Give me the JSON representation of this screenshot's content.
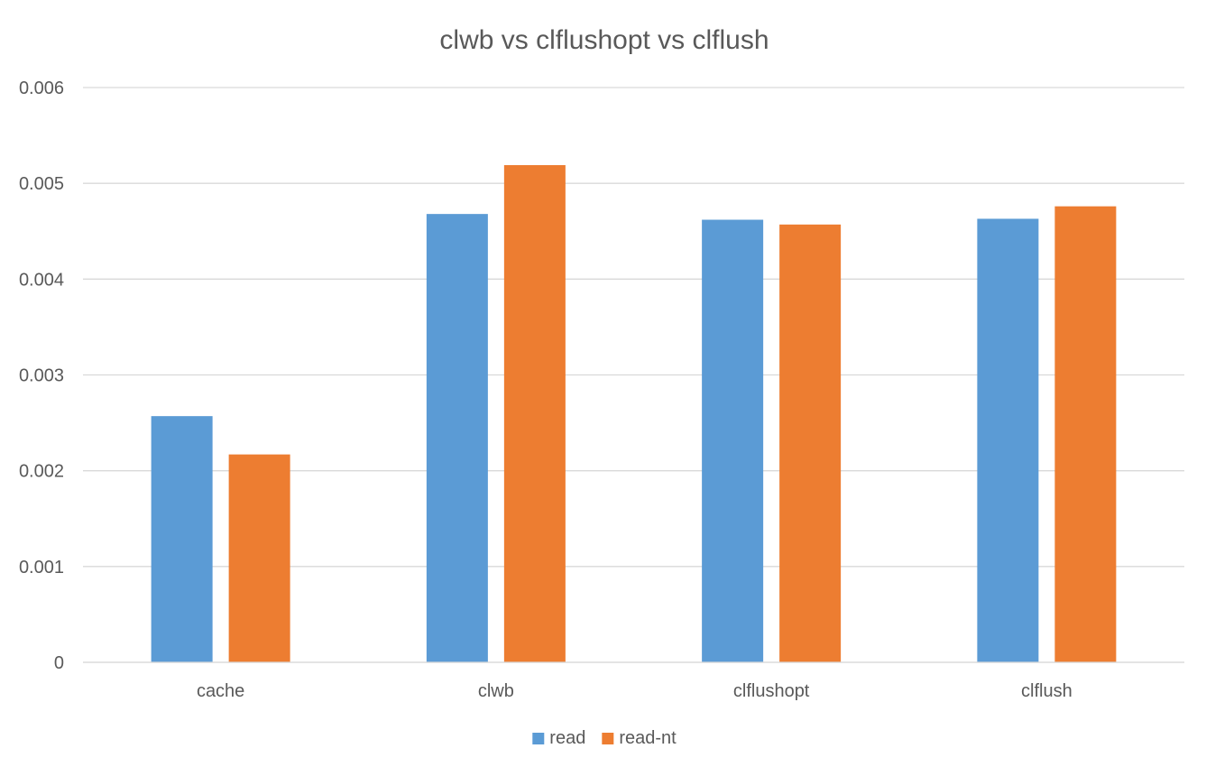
{
  "chart_data": {
    "type": "bar",
    "title": "clwb vs clflushopt vs clflush",
    "xlabel": "",
    "ylabel": "",
    "categories": [
      "cache",
      "clwb",
      "clflushopt",
      "clflush"
    ],
    "series": [
      {
        "name": "read",
        "color": "#5B9BD5",
        "values": [
          0.00257,
          0.00468,
          0.00462,
          0.00463
        ]
      },
      {
        "name": "read-nt",
        "color": "#ED7D31",
        "values": [
          0.00217,
          0.00519,
          0.00457,
          0.00476
        ]
      }
    ],
    "ylim": [
      0,
      0.006
    ],
    "yticks": [
      "0",
      "0.001",
      "0.002",
      "0.003",
      "0.004",
      "0.005",
      "0.006"
    ],
    "grid": true,
    "legend_position": "bottom"
  }
}
